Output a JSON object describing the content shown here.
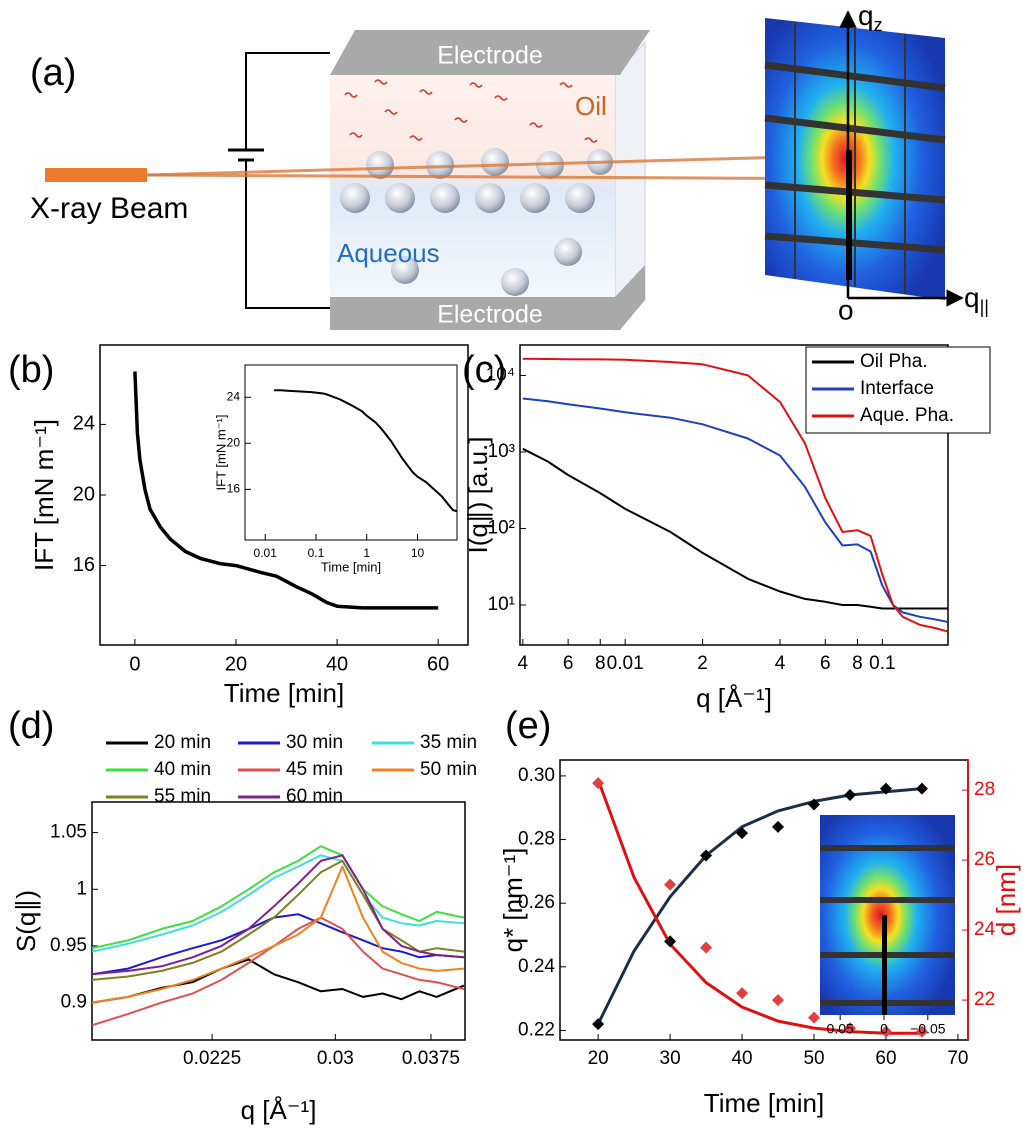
{
  "panel_a": {
    "label": "(a)",
    "electrode_top": "Electrode",
    "oil": "Oil",
    "beam": "X-ray Beam",
    "aqueous": "Aqueous",
    "electrode_bottom": "Electrode",
    "qz": "q",
    "qz_sub": "z",
    "origin": "o",
    "qpar": "q",
    "qpar_sub": "||"
  },
  "chart_data": [
    {
      "type": "line",
      "label": "(b)",
      "x_label": "Time [min]",
      "y_label": "IFT [mN m⁻¹]",
      "xlim": [
        -6.9,
        65.9
      ],
      "ylim": [
        11.5,
        28.5
      ],
      "xticks": [
        0,
        20,
        40,
        60
      ],
      "yticks": [
        16,
        20,
        24
      ],
      "x": [
        0,
        0.5,
        1,
        2,
        3,
        5,
        7,
        10,
        13,
        17,
        20,
        25,
        28,
        32,
        35,
        38,
        40,
        45,
        50,
        55,
        60
      ],
      "series": [
        {
          "color": "#000000",
          "values": [
            27,
            23.5,
            22,
            20.3,
            19.2,
            18.2,
            17.5,
            16.8,
            16.4,
            16.1,
            16,
            15.6,
            15.4,
            14.8,
            14.4,
            13.9,
            13.7,
            13.6,
            13.6,
            13.6,
            13.6
          ]
        }
      ]
    },
    {
      "type": "line",
      "x_label": "Time [min]",
      "y_label": "IFT [mN m⁻¹]",
      "xlog": true,
      "xlim": [
        0.004,
        60
      ],
      "ylim": [
        11.6,
        26.8
      ],
      "xticks": [
        0.01,
        0.1,
        1,
        10
      ],
      "yticks": [
        16,
        20,
        24
      ],
      "x": [
        0.015,
        0.02,
        0.03,
        0.05,
        0.08,
        0.1,
        0.15,
        0.2,
        0.3,
        0.5,
        0.8,
        1,
        1.5,
        2,
        3,
        5,
        8,
        10,
        15,
        20,
        30,
        40,
        50,
        60
      ],
      "series": [
        {
          "color": "#000000",
          "values": [
            24.6,
            24.6,
            24.55,
            24.5,
            24.45,
            24.4,
            24.3,
            24.1,
            23.8,
            23.3,
            22.8,
            22.4,
            21.8,
            21.2,
            20.2,
            18.7,
            17.5,
            17.1,
            16.6,
            16.1,
            15.4,
            14.7,
            14.2,
            14.1
          ]
        }
      ]
    },
    {
      "type": "line",
      "label": "(c)",
      "x_label": "q [Å⁻¹]",
      "y_label": "I(q∥) [a.u.]",
      "xlog": true,
      "ylog": true,
      "xlim": [
        0.0039,
        0.18
      ],
      "ylim": [
        3,
        25000
      ],
      "xticks": [
        {
          "value": 0.004,
          "label": "4"
        },
        {
          "value": 0.006,
          "label": "6"
        },
        {
          "value": 0.008,
          "label": "8"
        },
        0.01,
        {
          "value": 0.02,
          "label": "2"
        },
        {
          "value": 0.04,
          "label": "4"
        },
        {
          "value": 0.06,
          "label": "6"
        },
        {
          "value": 0.08,
          "label": "8"
        },
        0.1
      ],
      "yticks": [
        {
          "value": 10,
          "label": "10¹"
        },
        {
          "value": 100,
          "label": "10²"
        },
        {
          "value": 1000,
          "label": "10³"
        },
        {
          "value": 10000,
          "label": "10⁴"
        }
      ],
      "x": [
        0.004,
        0.005,
        0.006,
        0.008,
        0.01,
        0.015,
        0.02,
        0.03,
        0.04,
        0.05,
        0.06,
        0.07,
        0.08,
        0.09,
        0.1,
        0.11,
        0.12,
        0.14,
        0.16,
        0.18
      ],
      "legend": "upper right",
      "series": [
        {
          "name": "Oil Pha.",
          "color": "#000000",
          "values": [
            1100,
            750,
            500,
            290,
            180,
            90,
            48,
            22,
            15,
            12,
            11,
            10,
            10,
            9.5,
            9,
            9,
            9,
            9,
            9,
            9
          ]
        },
        {
          "name": "Interface",
          "color": "#1f3fbf",
          "values": [
            5000,
            4600,
            4200,
            3700,
            3300,
            2800,
            2300,
            1500,
            900,
            350,
            120,
            60,
            62,
            50,
            18,
            10,
            8,
            7,
            6.5,
            6
          ]
        },
        {
          "name": "Aque. Pha.",
          "color": "#e01010",
          "values": [
            16500,
            16400,
            16300,
            16200,
            16000,
            15000,
            14000,
            10000,
            4500,
            1300,
            250,
            90,
            95,
            80,
            25,
            10,
            7,
            5.5,
            5,
            4.5
          ]
        }
      ]
    },
    {
      "type": "line",
      "label": "(d)",
      "x_label": "q [Å⁻¹]",
      "y_label": "S(q∥)",
      "xlog": true,
      "xlim": [
        0.017,
        0.0406
      ],
      "ylim": [
        0.867,
        1.077
      ],
      "xticks": [
        0.0225,
        0.03,
        0.0375
      ],
      "yticks": [
        0.9,
        0.95,
        1,
        1.05
      ],
      "x": [
        0.017,
        0.0185,
        0.02,
        0.0215,
        0.023,
        0.0245,
        0.026,
        0.0275,
        0.029,
        0.0305,
        0.032,
        0.0335,
        0.035,
        0.0365,
        0.038,
        0.0405
      ],
      "legend": "top",
      "series": [
        {
          "name": "20 min",
          "color": "#000000",
          "values": [
            0.9,
            0.905,
            0.913,
            0.918,
            0.93,
            0.938,
            0.925,
            0.918,
            0.91,
            0.912,
            0.905,
            0.908,
            0.903,
            0.91,
            0.905,
            0.915
          ]
        },
        {
          "name": "30 min",
          "color": "#1a1ad0",
          "values": [
            0.925,
            0.93,
            0.94,
            0.948,
            0.955,
            0.965,
            0.975,
            0.978,
            0.97,
            0.962,
            0.955,
            0.948,
            0.945,
            0.94,
            0.942,
            0.94
          ]
        },
        {
          "name": "35 min",
          "color": "#40dede",
          "values": [
            0.945,
            0.952,
            0.96,
            0.968,
            0.98,
            0.995,
            1.01,
            1.02,
            1.03,
            1.025,
            0.995,
            0.975,
            0.97,
            0.968,
            0.972,
            0.97
          ]
        },
        {
          "name": "40 min",
          "color": "#3ee03e",
          "values": [
            0.948,
            0.955,
            0.965,
            0.972,
            0.985,
            1.0,
            1.015,
            1.025,
            1.038,
            1.03,
            1.0,
            0.985,
            0.978,
            0.972,
            0.98,
            0.975
          ]
        },
        {
          "name": "45 min",
          "color": "#e05050",
          "values": [
            0.88,
            0.89,
            0.9,
            0.908,
            0.92,
            0.935,
            0.95,
            0.965,
            0.975,
            0.965,
            0.945,
            0.93,
            0.925,
            0.92,
            0.918,
            0.912
          ]
        },
        {
          "name": "50 min",
          "color": "#f08020",
          "values": [
            0.9,
            0.905,
            0.912,
            0.92,
            0.93,
            0.94,
            0.95,
            0.96,
            0.975,
            1.02,
            0.975,
            0.945,
            0.935,
            0.93,
            0.928,
            0.93
          ]
        },
        {
          "name": "55 min",
          "color": "#808020",
          "values": [
            0.92,
            0.923,
            0.928,
            0.935,
            0.945,
            0.96,
            0.975,
            0.995,
            1.015,
            1.025,
            0.995,
            0.965,
            0.955,
            0.945,
            0.948,
            0.945
          ]
        },
        {
          "name": "60 min",
          "color": "#802090",
          "values": [
            0.925,
            0.928,
            0.932,
            0.94,
            0.95,
            0.965,
            0.985,
            1.005,
            1.025,
            1.03,
            1.0,
            0.965,
            0.95,
            0.945,
            0.942,
            0.94
          ]
        }
      ]
    },
    {
      "type": "scatter",
      "label": "(e)",
      "x_label": "Time [min]",
      "y_label": "q* [nm⁻¹]",
      "y2_label": "d [nm]",
      "y2_color": "#e01010",
      "xlim": [
        14.7,
        71.4
      ],
      "ylim": [
        0.217,
        0.305
      ],
      "y2lim": [
        20.86,
        28.86
      ],
      "xticks": [
        20,
        30,
        40,
        50,
        60,
        70
      ],
      "yticks": [
        0.22,
        0.24,
        0.26,
        0.28,
        {
          "value": 0.3,
          "label": "0.30"
        }
      ],
      "y2ticks": [
        22,
        24,
        26,
        28
      ],
      "inset_xlim": [
        0.073,
        -0.081
      ],
      "inset_xticks": [
        0.05,
        0,
        {
          "value": -0.05,
          "label": "−0.05"
        }
      ],
      "series": [
        {
          "style": "markers",
          "color": "#000000",
          "x": [
            20,
            30,
            35,
            40,
            45,
            50,
            55,
            60,
            65
          ],
          "values": [
            0.222,
            0.248,
            0.275,
            0.282,
            0.284,
            0.291,
            0.294,
            0.296,
            0.296
          ]
        },
        {
          "style": "line",
          "color": "#1c2e4a",
          "x": [
            20,
            25,
            30,
            35,
            40,
            45,
            50,
            55,
            60,
            65
          ],
          "values": [
            0.222,
            0.245,
            0.262,
            0.275,
            0.284,
            0.289,
            0.292,
            0.294,
            0.295,
            0.296
          ]
        },
        {
          "style": "markers",
          "color": "#e04040",
          "axis": "y2",
          "x": [
            20,
            30,
            35,
            40,
            45,
            50,
            55,
            60,
            65
          ],
          "values": [
            28.2,
            25.3,
            23.5,
            22.2,
            22.0,
            21.5,
            21.2,
            21.1,
            21.1
          ]
        },
        {
          "style": "line",
          "color": "#e01010",
          "axis": "y2",
          "x": [
            20,
            25,
            30,
            35,
            40,
            45,
            50,
            55,
            60,
            65
          ],
          "values": [
            28.3,
            25.5,
            23.6,
            22.5,
            21.8,
            21.4,
            21.2,
            21.1,
            21.05,
            21.05
          ]
        }
      ]
    }
  ]
}
